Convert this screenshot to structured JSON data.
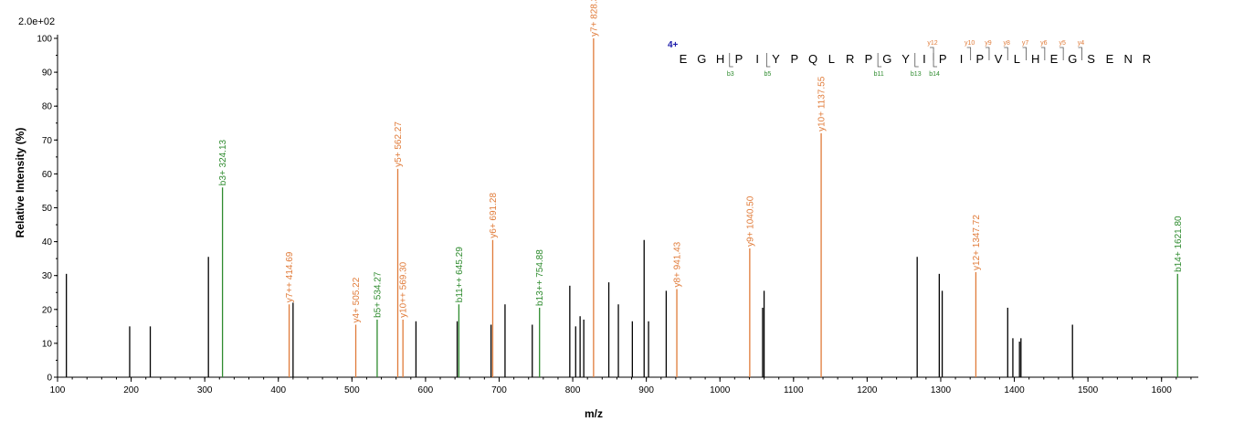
{
  "colors": {
    "b": "#2e8b2e",
    "y": "#e07b39",
    "other": "#000000",
    "charge": "#1a1aaa"
  },
  "scale_label": "2.0e+02",
  "chart_data": {
    "type": "bar",
    "xlabel": "m/z",
    "ylabel": "Relative Intensity (%)",
    "xlim": [
      100,
      1650
    ],
    "ylim": [
      0,
      100
    ],
    "x_ticks": [
      100,
      200,
      300,
      400,
      500,
      600,
      700,
      800,
      900,
      1000,
      1100,
      1200,
      1300,
      1400,
      1500,
      1600
    ],
    "y_ticks": [
      0,
      10,
      20,
      30,
      40,
      50,
      60,
      70,
      80,
      90,
      100
    ],
    "peaks": [
      {
        "mz": 112,
        "intensity": 30.5,
        "ion": "other",
        "label": ""
      },
      {
        "mz": 198,
        "intensity": 15,
        "ion": "other",
        "label": ""
      },
      {
        "mz": 226,
        "intensity": 15,
        "ion": "other",
        "label": ""
      },
      {
        "mz": 305,
        "intensity": 35.5,
        "ion": "other",
        "label": ""
      },
      {
        "mz": 324.13,
        "intensity": 56,
        "ion": "b",
        "label": "b3+ 324.13"
      },
      {
        "mz": 414.69,
        "intensity": 21.5,
        "ion": "y",
        "label": "y7++ 414.69"
      },
      {
        "mz": 420,
        "intensity": 22,
        "ion": "other",
        "label": ""
      },
      {
        "mz": 505.22,
        "intensity": 15.5,
        "ion": "y",
        "label": "y4+ 505.22"
      },
      {
        "mz": 534.27,
        "intensity": 17,
        "ion": "b",
        "label": "b5+ 534.27"
      },
      {
        "mz": 562.27,
        "intensity": 61.5,
        "ion": "y",
        "label": "y5+ 562.27"
      },
      {
        "mz": 569.3,
        "intensity": 17,
        "ion": "y",
        "label": "y10++ 569.30"
      },
      {
        "mz": 587,
        "intensity": 16.5,
        "ion": "other",
        "label": ""
      },
      {
        "mz": 645.29,
        "intensity": 21.5,
        "ion": "b",
        "label": "b11++ 645.29"
      },
      {
        "mz": 643,
        "intensity": 16.5,
        "ion": "other",
        "label": ""
      },
      {
        "mz": 689,
        "intensity": 15.5,
        "ion": "other",
        "label": ""
      },
      {
        "mz": 691.28,
        "intensity": 40.5,
        "ion": "y",
        "label": "y6+ 691.28"
      },
      {
        "mz": 708,
        "intensity": 21.5,
        "ion": "other",
        "label": ""
      },
      {
        "mz": 745,
        "intensity": 15.5,
        "ion": "other",
        "label": ""
      },
      {
        "mz": 754.88,
        "intensity": 20.5,
        "ion": "b",
        "label": "b13++ 754.88"
      },
      {
        "mz": 796,
        "intensity": 27,
        "ion": "other",
        "label": ""
      },
      {
        "mz": 804,
        "intensity": 15,
        "ion": "other",
        "label": ""
      },
      {
        "mz": 810,
        "intensity": 18,
        "ion": "other",
        "label": ""
      },
      {
        "mz": 815,
        "intensity": 17,
        "ion": "other",
        "label": ""
      },
      {
        "mz": 828.3,
        "intensity": 100,
        "ion": "y",
        "label": "y7+ 828.3"
      },
      {
        "mz": 849,
        "intensity": 28,
        "ion": "other",
        "label": ""
      },
      {
        "mz": 862,
        "intensity": 21.5,
        "ion": "other",
        "label": ""
      },
      {
        "mz": 881,
        "intensity": 16.5,
        "ion": "other",
        "label": ""
      },
      {
        "mz": 897,
        "intensity": 40.5,
        "ion": "other",
        "label": ""
      },
      {
        "mz": 903,
        "intensity": 16.5,
        "ion": "other",
        "label": ""
      },
      {
        "mz": 927,
        "intensity": 25.5,
        "ion": "other",
        "label": ""
      },
      {
        "mz": 941.43,
        "intensity": 26,
        "ion": "y",
        "label": "y8+ 941.43"
      },
      {
        "mz": 1040.5,
        "intensity": 38,
        "ion": "y",
        "label": "y9+ 1040.50"
      },
      {
        "mz": 1058,
        "intensity": 20.5,
        "ion": "other",
        "label": ""
      },
      {
        "mz": 1060,
        "intensity": 25.5,
        "ion": "other",
        "label": ""
      },
      {
        "mz": 1137.55,
        "intensity": 72,
        "ion": "y",
        "label": "y10+ 1137.55"
      },
      {
        "mz": 1268,
        "intensity": 35.5,
        "ion": "other",
        "label": ""
      },
      {
        "mz": 1298,
        "intensity": 30.5,
        "ion": "other",
        "label": ""
      },
      {
        "mz": 1302,
        "intensity": 25.5,
        "ion": "other",
        "label": ""
      },
      {
        "mz": 1347.72,
        "intensity": 31,
        "ion": "y",
        "label": "y12+ 1347.72"
      },
      {
        "mz": 1391,
        "intensity": 20.5,
        "ion": "other",
        "label": ""
      },
      {
        "mz": 1398,
        "intensity": 11.5,
        "ion": "other",
        "label": ""
      },
      {
        "mz": 1407,
        "intensity": 10.5,
        "ion": "other",
        "label": ""
      },
      {
        "mz": 1409,
        "intensity": 11.5,
        "ion": "other",
        "label": ""
      },
      {
        "mz": 1479,
        "intensity": 15.5,
        "ion": "other",
        "label": ""
      },
      {
        "mz": 1621.8,
        "intensity": 30.5,
        "ion": "b",
        "label": "b14+ 1621.80"
      }
    ]
  },
  "sequence": {
    "charge": "4+",
    "residues": [
      "E",
      "G",
      "H",
      "P",
      "I",
      "Y",
      "P",
      "Q",
      "L",
      "R",
      "P",
      "G",
      "Y",
      "I",
      "P",
      "I",
      "P",
      "V",
      "L",
      "H",
      "E",
      "G",
      "S",
      "E",
      "N",
      "R"
    ],
    "y_ions": [
      {
        "after": 13,
        "label": "y12"
      },
      {
        "after": 15,
        "label": "y10"
      },
      {
        "after": 16,
        "label": "y9"
      },
      {
        "after": 17,
        "label": "y8"
      },
      {
        "after": 18,
        "label": "y7"
      },
      {
        "after": 19,
        "label": "y6"
      },
      {
        "after": 20,
        "label": "y5"
      },
      {
        "after": 21,
        "label": "y4"
      }
    ],
    "b_ions": [
      {
        "after": 2,
        "label": "b3"
      },
      {
        "after": 4,
        "label": "b5"
      },
      {
        "after": 10,
        "label": "b11"
      },
      {
        "after": 12,
        "label": "b13"
      },
      {
        "after": 13,
        "label": "b14"
      }
    ]
  }
}
